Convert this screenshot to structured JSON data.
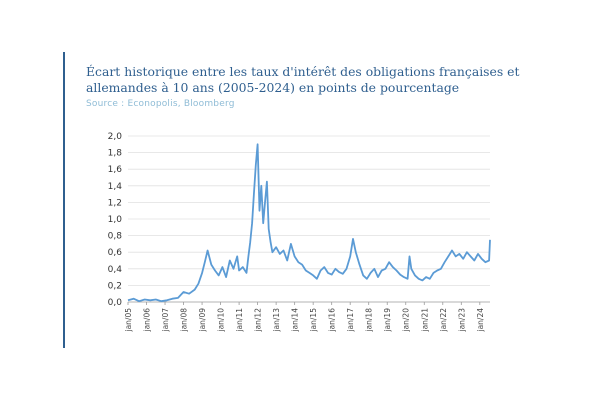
{
  "header": {
    "title": "Écart historique entre les taux d'intérêt des obligations françaises et allemandes à 10 ans (2005-2024) en points de pourcentage",
    "source": "Source : Econopolis, Bloomberg"
  },
  "colors": {
    "accent": "#2f5f8f",
    "line": "#5b9bd5",
    "source": "#8fbcd6"
  },
  "chart_data": {
    "type": "line",
    "title": "Écart historique entre les taux d'intérêt des obligations françaises et allemandes à 10 ans (2005-2024) en points de pourcentage",
    "xlabel": "",
    "ylabel": "",
    "ylim": [
      0,
      2.0
    ],
    "grid": true,
    "legend": "none",
    "y_ticks": [
      "0,0",
      "0,2",
      "0,4",
      "0,6",
      "0,8",
      "1,0",
      "1,2",
      "1,4",
      "1,6",
      "1,8",
      "2,0"
    ],
    "x_ticks": [
      "jan/05",
      "jan/06",
      "jan/07",
      "jan/08",
      "jan/09",
      "jan/10",
      "jan/11",
      "jan/12",
      "jan/13",
      "jan/14",
      "jan/15",
      "jan/16",
      "jan/17",
      "jan/18",
      "jan/19",
      "jan/20",
      "jan/21",
      "jan/22",
      "jan/23",
      "jan/24"
    ],
    "series": [
      {
        "x": [
          2005.0,
          2005.3,
          2005.6,
          2005.9,
          2006.2,
          2006.5,
          2006.8,
          2007.1,
          2007.4,
          2007.7,
          2008.0,
          2008.3,
          2008.6,
          2008.8,
          2009.0,
          2009.15,
          2009.3,
          2009.5,
          2009.7,
          2009.9,
          2010.1,
          2010.3,
          2010.5,
          2010.7,
          2010.9,
          2011.0,
          2011.2,
          2011.4,
          2011.5,
          2011.6,
          2011.7,
          2011.8,
          2011.9,
          2012.0,
          2012.1,
          2012.2,
          2012.3,
          2012.4,
          2012.5,
          2012.6,
          2012.7,
          2012.8,
          2013.0,
          2013.2,
          2013.4,
          2013.6,
          2013.8,
          2014.0,
          2014.2,
          2014.4,
          2014.6,
          2014.8,
          2015.0,
          2015.2,
          2015.4,
          2015.6,
          2015.8,
          2016.0,
          2016.2,
          2016.4,
          2016.6,
          2016.8,
          2017.0,
          2017.15,
          2017.3,
          2017.5,
          2017.7,
          2017.9,
          2018.1,
          2018.3,
          2018.5,
          2018.7,
          2018.9,
          2019.1,
          2019.3,
          2019.5,
          2019.7,
          2019.9,
          2020.1,
          2020.2,
          2020.3,
          2020.5,
          2020.7,
          2020.9,
          2021.1,
          2021.3,
          2021.5,
          2021.7,
          2021.9,
          2022.1,
          2022.3,
          2022.5,
          2022.7,
          2022.9,
          2023.1,
          2023.3,
          2023.5,
          2023.7,
          2023.9,
          2024.1,
          2024.3,
          2024.5,
          2024.55
        ],
        "values": [
          0.02,
          0.04,
          0.01,
          0.03,
          0.02,
          0.03,
          0.01,
          0.02,
          0.04,
          0.05,
          0.12,
          0.1,
          0.15,
          0.22,
          0.35,
          0.48,
          0.62,
          0.45,
          0.38,
          0.32,
          0.42,
          0.3,
          0.5,
          0.4,
          0.55,
          0.38,
          0.42,
          0.35,
          0.55,
          0.72,
          0.95,
          1.3,
          1.65,
          1.9,
          1.1,
          1.4,
          0.95,
          1.2,
          1.45,
          0.88,
          0.72,
          0.6,
          0.66,
          0.58,
          0.62,
          0.5,
          0.7,
          0.55,
          0.48,
          0.45,
          0.38,
          0.35,
          0.32,
          0.28,
          0.38,
          0.42,
          0.35,
          0.33,
          0.4,
          0.36,
          0.34,
          0.4,
          0.55,
          0.76,
          0.6,
          0.45,
          0.32,
          0.28,
          0.35,
          0.4,
          0.3,
          0.38,
          0.4,
          0.48,
          0.42,
          0.38,
          0.33,
          0.3,
          0.28,
          0.55,
          0.4,
          0.32,
          0.28,
          0.26,
          0.3,
          0.28,
          0.35,
          0.38,
          0.4,
          0.48,
          0.55,
          0.62,
          0.55,
          0.58,
          0.52,
          0.6,
          0.55,
          0.5,
          0.58,
          0.52,
          0.48,
          0.5,
          0.75
        ]
      }
    ]
  }
}
